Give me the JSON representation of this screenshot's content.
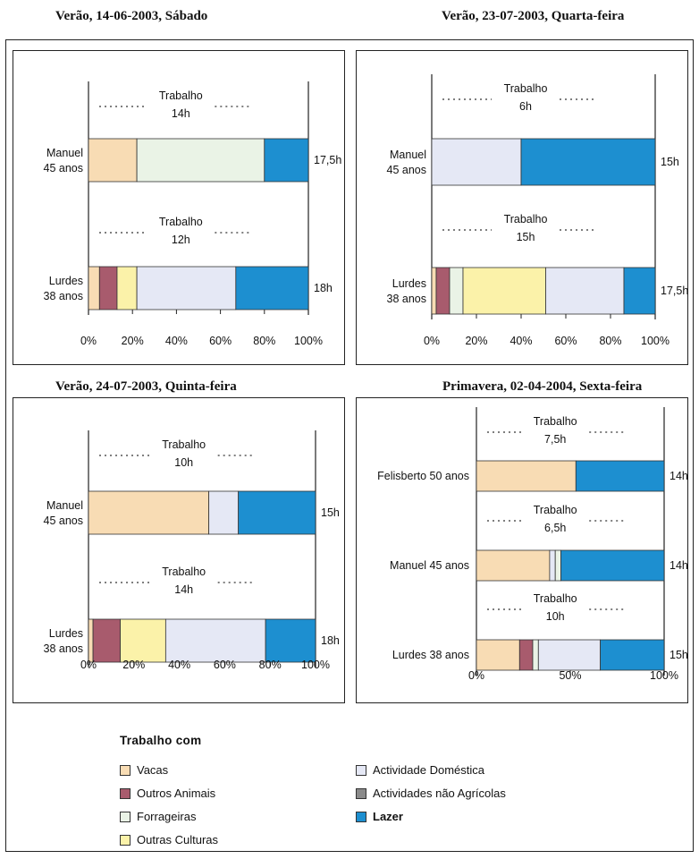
{
  "colors": {
    "vacas": "#f8dcb4",
    "outros_animais": "#a85b6d",
    "forrageiras": "#eaf3e6",
    "outras_culturas": "#fbf2a9",
    "actividade_domestica": "#e5e8f5",
    "actividades_nao_agricolas": "#8a8a8a",
    "lazer": "#1d8fd0"
  },
  "chart_data": [
    {
      "type": "bar",
      "orientation": "horizontal",
      "stacked": true,
      "title": "Verão, 14-06-2003, Sábado",
      "xticks": [
        "0%",
        "20%",
        "40%",
        "60%",
        "80%",
        "100%"
      ],
      "xlim": [
        0,
        100
      ],
      "rows": [
        {
          "label_lines": [
            "Manuel",
            "45 anos"
          ],
          "total": "17,5h",
          "work_label": "Trabalho",
          "work_hours": "14h",
          "segments": [
            {
              "category": "vacas",
              "value": 22
            },
            {
              "category": "forrageiras",
              "value": 58
            },
            {
              "category": "lazer",
              "value": 20
            }
          ]
        },
        {
          "label_lines": [
            "Lurdes",
            "38 anos"
          ],
          "total": "18h",
          "work_label": "Trabalho",
          "work_hours": "12h",
          "segments": [
            {
              "category": "vacas",
              "value": 5
            },
            {
              "category": "outros_animais",
              "value": 8
            },
            {
              "category": "outras_culturas",
              "value": 9
            },
            {
              "category": "actividade_domestica",
              "value": 45
            },
            {
              "category": "lazer",
              "value": 33
            }
          ]
        }
      ]
    },
    {
      "type": "bar",
      "orientation": "horizontal",
      "stacked": true,
      "title": "Verão, 23-07-2003, Quarta-feira",
      "xticks": [
        "0%",
        "20%",
        "40%",
        "60%",
        "80%",
        "100%"
      ],
      "xlim": [
        0,
        100
      ],
      "rows": [
        {
          "label_lines": [
            "Manuel",
            "45 anos"
          ],
          "total": "15h",
          "work_label": "Trabalho",
          "work_hours": "6h",
          "segments": [
            {
              "category": "actividade_domestica",
              "value": 40
            },
            {
              "category": "lazer",
              "value": 60
            }
          ]
        },
        {
          "label_lines": [
            "Lurdes",
            "38 anos"
          ],
          "total": "17,5h",
          "work_label": "Trabalho",
          "work_hours": "15h",
          "segments": [
            {
              "category": "vacas",
              "value": 2
            },
            {
              "category": "outros_animais",
              "value": 6
            },
            {
              "category": "forrageiras",
              "value": 6
            },
            {
              "category": "outras_culturas",
              "value": 37
            },
            {
              "category": "actividade_domestica",
              "value": 35
            },
            {
              "category": "lazer",
              "value": 14
            }
          ]
        }
      ]
    },
    {
      "type": "bar",
      "orientation": "horizontal",
      "stacked": true,
      "title": "Verão, 24-07-2003, Quinta-feira",
      "xticks": [
        "0%",
        "20%",
        "40%",
        "60%",
        "80%",
        "100%"
      ],
      "xlim": [
        0,
        100
      ],
      "rows": [
        {
          "label_lines": [
            "Manuel",
            "45 anos"
          ],
          "total": "15h",
          "work_label": "Trabalho",
          "work_hours": "10h",
          "segments": [
            {
              "category": "vacas",
              "value": 53
            },
            {
              "category": "actividade_domestica",
              "value": 13
            },
            {
              "category": "lazer",
              "value": 34
            }
          ]
        },
        {
          "label_lines": [
            "Lurdes",
            "38 anos"
          ],
          "total": "18h",
          "work_label": "Trabalho",
          "work_hours": "14h",
          "segments": [
            {
              "category": "vacas",
              "value": 2
            },
            {
              "category": "outros_animais",
              "value": 12
            },
            {
              "category": "outras_culturas",
              "value": 20
            },
            {
              "category": "actividade_domestica",
              "value": 44
            },
            {
              "category": "lazer",
              "value": 22
            }
          ]
        }
      ]
    },
    {
      "type": "bar",
      "orientation": "horizontal",
      "stacked": true,
      "title": "Primavera, 02-04-2004, Sexta-feira",
      "xticks": [
        "0%",
        "50%",
        "100%"
      ],
      "xlim": [
        0,
        100
      ],
      "rows": [
        {
          "label_lines": [
            "Felisberto 50 anos"
          ],
          "total": "14h",
          "work_label": "Trabalho",
          "work_hours": "7,5h",
          "segments": [
            {
              "category": "vacas",
              "value": 53
            },
            {
              "category": "lazer",
              "value": 47
            }
          ]
        },
        {
          "label_lines": [
            "Manuel 45 anos"
          ],
          "total": "14h",
          "work_label": "Trabalho",
          "work_hours": "6,5h",
          "segments": [
            {
              "category": "vacas",
              "value": 39
            },
            {
              "category": "actividade_domestica",
              "value": 3
            },
            {
              "category": "forrageiras",
              "value": 3
            },
            {
              "category": "lazer",
              "value": 55
            }
          ]
        },
        {
          "label_lines": [
            "Lurdes 38 anos"
          ],
          "total": "15h",
          "work_label": "Trabalho",
          "work_hours": "10h",
          "segments": [
            {
              "category": "vacas",
              "value": 23
            },
            {
              "category": "outros_animais",
              "value": 7
            },
            {
              "category": "forrageiras",
              "value": 3
            },
            {
              "category": "actividade_domestica",
              "value": 33
            },
            {
              "category": "lazer",
              "value": 34
            }
          ]
        }
      ]
    }
  ],
  "legend": {
    "heading": "Trabalho com",
    "items": [
      {
        "key": "vacas",
        "label": "Vacas",
        "bold": false
      },
      {
        "key": "outros_animais",
        "label": "Outros Animais",
        "bold": false
      },
      {
        "key": "forrageiras",
        "label": "Forrageiras",
        "bold": false
      },
      {
        "key": "outras_culturas",
        "label": "Outras Culturas",
        "bold": false
      },
      {
        "key": "actividade_domestica",
        "label": "Actividade Doméstica",
        "bold": false
      },
      {
        "key": "actividades_nao_agricolas",
        "label": "Actividades não Agrícolas",
        "bold": false
      },
      {
        "key": "lazer",
        "label": "Lazer",
        "bold": true
      }
    ]
  }
}
